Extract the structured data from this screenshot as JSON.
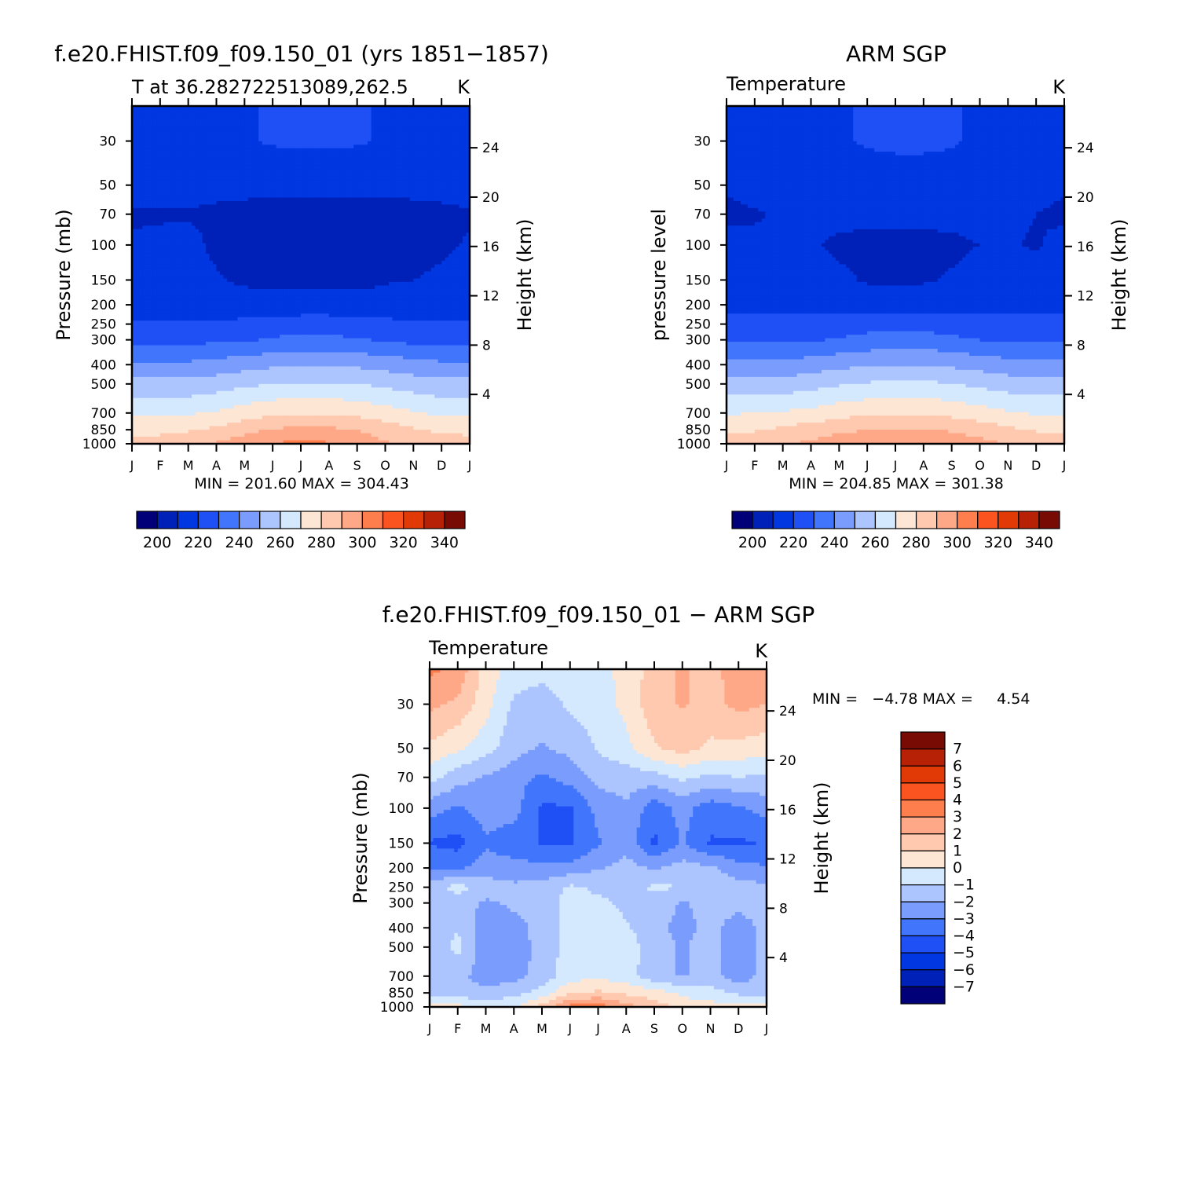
{
  "chart_data": [
    {
      "type": "heatmap",
      "title": "f.e20.FHIST.f09_f09.150_01 (yrs 1851−1857)",
      "subtitle_left": "T at 36.282722513089,262.5",
      "subtitle_right": "K",
      "ylabel": "Pressure (mb)",
      "ylabel_right": "Height (km)",
      "x_ticks": [
        "J",
        "F",
        "M",
        "A",
        "M",
        "J",
        "J",
        "A",
        "S",
        "O",
        "N",
        "D",
        "J"
      ],
      "y_ticks": [
        30,
        50,
        70,
        100,
        150,
        200,
        250,
        300,
        400,
        500,
        700,
        850,
        1000
      ],
      "y_ticks_right": [
        24,
        20,
        16,
        12,
        8,
        4
      ],
      "y_scale": "log",
      "ylim": [
        1000,
        20
      ],
      "xlim": [
        0,
        12
      ],
      "min_max_text": "MIN = 201.60 MAX = 304.43",
      "min": 201.6,
      "max": 304.43,
      "contour_levels": [
        200,
        210,
        220,
        230,
        240,
        250,
        260,
        270,
        280,
        290,
        300,
        310,
        320,
        330,
        340
      ],
      "colorbar_labels": [
        "200",
        "220",
        "240",
        "260",
        "280",
        "300",
        "320",
        "340"
      ],
      "colorbar_orientation": "horizontal",
      "months": [
        0,
        1,
        2,
        3,
        4,
        5,
        6,
        7,
        8,
        9,
        10,
        11,
        12
      ],
      "levels": [
        20,
        30,
        50,
        70,
        100,
        150,
        200,
        250,
        300,
        400,
        500,
        700,
        850,
        1000
      ],
      "values": [
        [
          218,
          218,
          218,
          218,
          219,
          221,
          222,
          222,
          221,
          219,
          218,
          218,
          218
        ],
        [
          218,
          218,
          218,
          218,
          219,
          221,
          222,
          222,
          221,
          219,
          218,
          218,
          218
        ],
        [
          214,
          214,
          214,
          213,
          213,
          212,
          212,
          212,
          212,
          212,
          213,
          213,
          214
        ],
        [
          209,
          209,
          209,
          208,
          207,
          207,
          207,
          207,
          207,
          207,
          207,
          208,
          209
        ],
        [
          211,
          212,
          213,
          208,
          206,
          206,
          206,
          206,
          206,
          206,
          206,
          208,
          211
        ],
        [
          214,
          213,
          213,
          211,
          208,
          208,
          207,
          207,
          207,
          209,
          210,
          212,
          214
        ],
        [
          217,
          217,
          217,
          216,
          215,
          214,
          214,
          214,
          214,
          215,
          216,
          217,
          217
        ],
        [
          221,
          221,
          221,
          221,
          222,
          224,
          225,
          225,
          224,
          222,
          221,
          221,
          221
        ],
        [
          227,
          227,
          227,
          228,
          229,
          231,
          233,
          232,
          231,
          229,
          227,
          227,
          227
        ],
        [
          242,
          242,
          242,
          244,
          246,
          248,
          249,
          249,
          248,
          246,
          244,
          242,
          242
        ],
        [
          253,
          253,
          253,
          255,
          258,
          260,
          261,
          261,
          260,
          258,
          255,
          253,
          253
        ],
        [
          268,
          268,
          269,
          271,
          275,
          278,
          279,
          279,
          277,
          274,
          271,
          268,
          268
        ],
        [
          277,
          277,
          279,
          282,
          287,
          291,
          292,
          292,
          290,
          286,
          281,
          278,
          277
        ],
        [
          284,
          285,
          287,
          291,
          295,
          300,
          303,
          301,
          296,
          291,
          288,
          286,
          284
        ]
      ]
    },
    {
      "type": "heatmap",
      "title": "ARM SGP",
      "subtitle_left": "Temperature",
      "subtitle_right": "K",
      "ylabel": "pressure level",
      "ylabel_right": "Height (km)",
      "x_ticks": [
        "J",
        "F",
        "M",
        "A",
        "M",
        "J",
        "J",
        "A",
        "S",
        "O",
        "N",
        "D",
        "J"
      ],
      "y_ticks": [
        30,
        50,
        70,
        100,
        150,
        200,
        250,
        300,
        400,
        500,
        700,
        850,
        1000
      ],
      "y_ticks_right": [
        24,
        20,
        16,
        12,
        8,
        4
      ],
      "y_scale": "log",
      "ylim": [
        1000,
        20
      ],
      "xlim": [
        0,
        12
      ],
      "min_max_text": "MIN = 204.85 MAX = 301.38",
      "min": 204.85,
      "max": 301.38,
      "contour_levels": [
        200,
        210,
        220,
        230,
        240,
        250,
        260,
        270,
        280,
        290,
        300,
        310,
        320,
        330,
        340
      ],
      "colorbar_labels": [
        "200",
        "220",
        "240",
        "260",
        "280",
        "300",
        "320",
        "340"
      ],
      "colorbar_orientation": "horizontal",
      "months": [
        0,
        1,
        2,
        3,
        4,
        5,
        6,
        7,
        8,
        9,
        10,
        11,
        12
      ],
      "levels": [
        20,
        30,
        50,
        70,
        100,
        150,
        200,
        250,
        300,
        400,
        500,
        700,
        850,
        1000
      ],
      "values": [
        [
          217,
          217,
          217,
          217,
          219,
          221,
          222,
          222,
          221,
          218,
          217,
          217,
          217
        ],
        [
          217,
          217,
          217,
          217,
          219,
          221,
          222,
          222,
          221,
          218,
          217,
          217,
          217
        ],
        [
          211,
          214,
          215,
          215,
          215,
          215,
          215,
          215,
          215,
          215,
          215,
          214,
          211
        ],
        [
          208,
          209,
          211,
          213,
          213,
          213,
          213,
          213,
          213,
          213,
          212,
          210,
          208
        ],
        [
          213,
          212,
          211,
          211,
          208,
          207,
          207,
          207,
          208,
          210,
          211,
          209,
          213
        ],
        [
          215,
          215,
          215,
          215,
          212,
          209,
          208,
          209,
          211,
          214,
          215,
          215,
          215
        ],
        [
          218,
          218,
          218,
          218,
          217,
          216,
          215,
          216,
          217,
          218,
          218,
          218,
          218
        ],
        [
          222,
          222,
          222,
          223,
          224,
          226,
          227,
          226,
          225,
          223,
          222,
          222,
          222
        ],
        [
          228,
          228,
          228,
          229,
          231,
          233,
          235,
          234,
          232,
          230,
          228,
          228,
          228
        ],
        [
          243,
          243,
          243,
          245,
          247,
          249,
          250,
          250,
          248,
          246,
          244,
          243,
          243
        ],
        [
          254,
          254,
          254,
          256,
          259,
          261,
          262,
          262,
          260,
          258,
          255,
          254,
          254
        ],
        [
          269,
          270,
          271,
          273,
          276,
          278,
          279,
          279,
          277,
          274,
          271,
          269,
          269
        ],
        [
          278,
          279,
          282,
          285,
          288,
          290,
          291,
          291,
          289,
          286,
          282,
          279,
          278
        ],
        [
          285,
          286,
          289,
          292,
          295,
          297,
          299,
          298,
          296,
          293,
          290,
          287,
          285
        ]
      ]
    },
    {
      "type": "heatmap",
      "title": "f.e20.FHIST.f09_f09.150_01 − ARM SGP",
      "subtitle_left": "Temperature",
      "subtitle_right": "K",
      "ylabel": "Pressure (mb)",
      "ylabel_right": "Height (km)",
      "x_ticks": [
        "J",
        "F",
        "M",
        "A",
        "M",
        "J",
        "J",
        "A",
        "S",
        "O",
        "N",
        "D",
        "J"
      ],
      "y_ticks": [
        30,
        50,
        70,
        100,
        150,
        200,
        250,
        300,
        400,
        500,
        700,
        850,
        1000
      ],
      "y_ticks_right": [
        24,
        20,
        16,
        12,
        8,
        4
      ],
      "y_scale": "log",
      "ylim": [
        1000,
        20
      ],
      "xlim": [
        0,
        12
      ],
      "min_max_text": "MIN =   −4.78 MAX =     4.54",
      "min": -4.78,
      "max": 4.54,
      "contour_levels": [
        -7,
        -6,
        -5,
        -4,
        -3,
        -2,
        -1,
        0,
        1,
        2,
        3,
        4,
        5,
        6,
        7
      ],
      "colorbar_labels": [
        "7",
        "6",
        "5",
        "4",
        "3",
        "2",
        "1",
        "0",
        "−1",
        "−2",
        "−3",
        "−4",
        "−5",
        "−6",
        "−7"
      ],
      "colorbar_orientation": "vertical",
      "months": [
        0,
        1,
        2,
        3,
        4,
        5,
        6,
        7,
        8,
        9,
        10,
        11,
        12
      ],
      "levels": [
        20,
        30,
        50,
        70,
        100,
        150,
        200,
        250,
        300,
        400,
        500,
        700,
        850,
        1000
      ],
      "values": [
        [
          3.2,
          2.8,
          0.5,
          -0.4,
          -0.6,
          -0.3,
          -0.2,
          0.2,
          1.6,
          2.1,
          1.6,
          2.6,
          2.8
        ],
        [
          2.2,
          1.8,
          0.4,
          -1.2,
          -1.6,
          -0.8,
          -0.5,
          0.3,
          1.6,
          2.1,
          1.6,
          2.3,
          2.0
        ],
        [
          0.8,
          0.2,
          -0.6,
          -1.6,
          -2.1,
          -1.7,
          -0.9,
          -0.3,
          0.9,
          1.4,
          0.8,
          0.7,
          0.4
        ],
        [
          -0.6,
          -1.6,
          -2.1,
          -2.6,
          -3.2,
          -2.6,
          -1.6,
          -1.6,
          -1.4,
          -0.8,
          -1.2,
          -1.0,
          -1.2
        ],
        [
          -2.6,
          -3.1,
          -2.6,
          -2.6,
          -4.2,
          -4.1,
          -2.7,
          -2.1,
          -3.6,
          -2.6,
          -3.6,
          -3.1,
          -2.6
        ],
        [
          -4.1,
          -4.4,
          -3.1,
          -3.6,
          -4.1,
          -4.2,
          -3.1,
          -2.4,
          -4.2,
          -2.9,
          -4.1,
          -4.2,
          -3.9
        ],
        [
          -3.1,
          -3.1,
          -2.6,
          -2.6,
          -2.7,
          -2.6,
          -2.1,
          -1.6,
          -2.1,
          -1.6,
          -1.8,
          -2.6,
          -2.9
        ],
        [
          -1.6,
          -0.6,
          -1.4,
          -1.8,
          -1.6,
          -0.8,
          -1.2,
          -1.4,
          -0.8,
          -1.0,
          -1.2,
          -1.6,
          -1.8
        ],
        [
          -1.6,
          -1.4,
          -2.2,
          -1.8,
          -1.6,
          -0.6,
          -0.8,
          -1.2,
          -1.4,
          -2.1,
          -1.6,
          -1.6,
          -1.6
        ],
        [
          -1.6,
          -1.1,
          -2.6,
          -2.4,
          -1.6,
          -0.6,
          -0.5,
          -0.9,
          -1.6,
          -2.4,
          -1.6,
          -2.6,
          -1.6
        ],
        [
          -1.6,
          -0.7,
          -2.6,
          -2.6,
          -1.6,
          -0.6,
          -0.5,
          -0.4,
          -1.6,
          -2.1,
          -1.6,
          -2.6,
          -1.6
        ],
        [
          -1.6,
          -1.6,
          -2.6,
          -2.4,
          -1.6,
          -0.4,
          -0.2,
          -0.6,
          -1.6,
          -2.1,
          -1.6,
          -2.6,
          -1.6
        ],
        [
          -1.2,
          -1.6,
          -1.6,
          -1.3,
          -0.6,
          0.8,
          1.2,
          0.8,
          0.4,
          -0.2,
          -0.6,
          -1.2,
          -1.2
        ],
        [
          0.6,
          0.4,
          -0.6,
          -0.2,
          1.4,
          3.4,
          3.6,
          2.4,
          1.6,
          0.6,
          0.4,
          0.2,
          0.4
        ]
      ]
    }
  ],
  "colors": {
    "sequential": [
      "#010079",
      "#0021b8",
      "#0037e1",
      "#1e50f6",
      "#4176fc",
      "#7a9cfd",
      "#adc5fe",
      "#d4e8fe",
      "#fee6d4",
      "#ffc9b0",
      "#ffa888",
      "#ff7e4d",
      "#fb5420",
      "#e23a07",
      "#b72207",
      "#790b05"
    ],
    "diverging": [
      "#010079",
      "#0021b8",
      "#0037e1",
      "#1e50f6",
      "#4176fc",
      "#7a9cfd",
      "#adc5fe",
      "#d4e8fe",
      "#fee6d4",
      "#ffc9b0",
      "#ffa888",
      "#ff7e4d",
      "#fb5420",
      "#e23a07",
      "#b72207",
      "#790b05"
    ]
  }
}
